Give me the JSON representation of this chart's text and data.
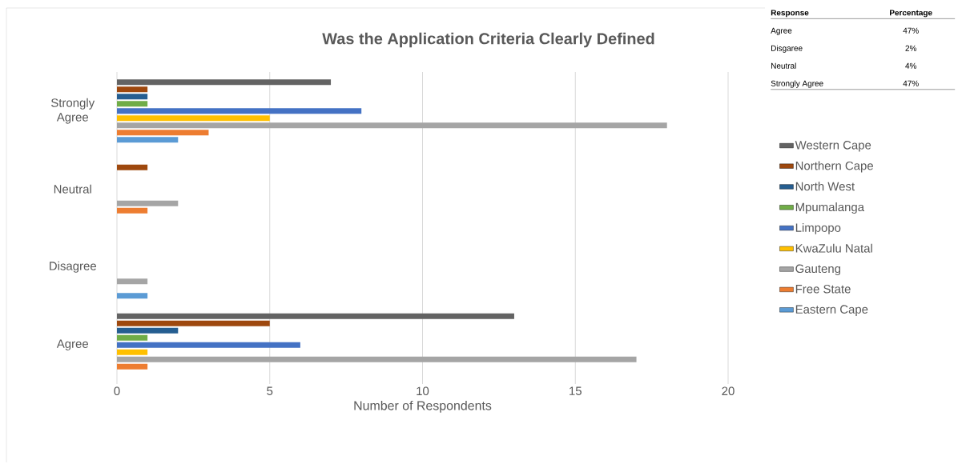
{
  "chart_data": {
    "type": "bar",
    "orientation": "horizontal",
    "title": "Was the Application Criteria Clearly Defined",
    "xlabel": "Number of Respondents",
    "categories": [
      "Strongly Agree",
      "Neutral",
      "Disagree",
      "Agree"
    ],
    "series": [
      {
        "name": "Western Cape",
        "color": "#636363",
        "values": [
          7,
          null,
          null,
          13
        ]
      },
      {
        "name": "Northern Cape",
        "color": "#9e480e",
        "values": [
          1,
          1,
          null,
          5
        ]
      },
      {
        "name": "North West",
        "color": "#255e91",
        "values": [
          1,
          null,
          null,
          2
        ]
      },
      {
        "name": "Mpumalanga",
        "color": "#70ad47",
        "values": [
          1,
          null,
          null,
          1
        ]
      },
      {
        "name": "Limpopo",
        "color": "#4472c4",
        "values": [
          8,
          null,
          null,
          6
        ]
      },
      {
        "name": "KwaZulu Natal",
        "color": "#ffc000",
        "values": [
          5,
          null,
          null,
          1
        ]
      },
      {
        "name": "Gauteng",
        "color": "#a5a5a5",
        "values": [
          18,
          2,
          1,
          17
        ]
      },
      {
        "name": "Free State",
        "color": "#ed7d31",
        "values": [
          3,
          1,
          null,
          1
        ]
      },
      {
        "name": "Eastern Cape",
        "color": "#5b9bd5",
        "values": [
          2,
          null,
          1,
          null
        ]
      }
    ],
    "xlim": [
      0,
      20
    ],
    "xticks": [
      0,
      5,
      10,
      15,
      20
    ],
    "grid": "x",
    "legend": "right",
    "annotations": [
      "Response",
      "Percentage",
      "Agree",
      "47%",
      "Disgaree",
      "2%",
      "Neutral",
      "4%",
      "Strongly Agree",
      "47%"
    ]
  }
}
